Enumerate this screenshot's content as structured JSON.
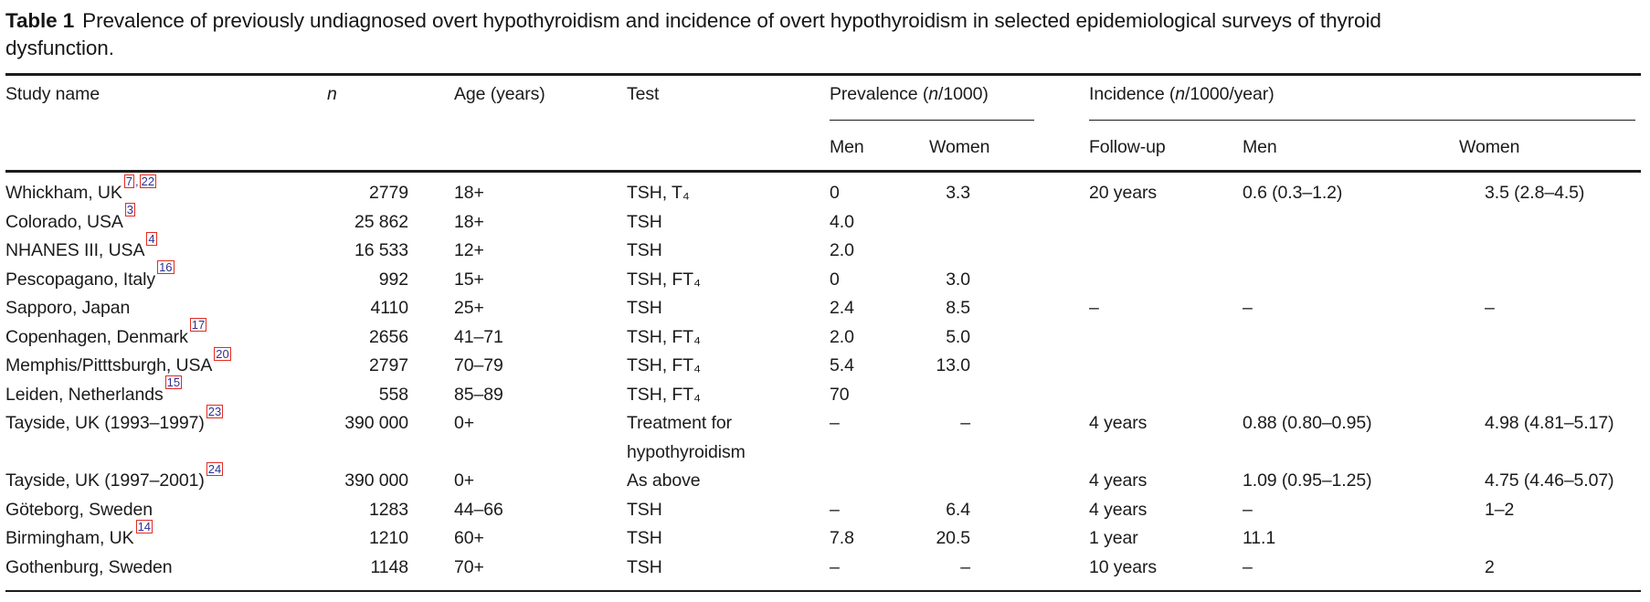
{
  "title": {
    "label": "Table 1",
    "text": "Prevalence of previously undiagnosed overt hypothyroidism and incidence of overt hypothyroidism in selected epidemiological surveys of thyroid dysfunction."
  },
  "header": {
    "study": "Study name",
    "n": "n",
    "age": "Age (years)",
    "test": "Test",
    "prevalence": {
      "pre": "Prevalence (",
      "italic": "n",
      "post": "/1000)"
    },
    "incidence": {
      "pre": "Incidence (",
      "italic": "n",
      "post": "/1000/year)"
    },
    "sub": {
      "prev_men": "Men",
      "prev_women": "Women",
      "follow_up": "Follow-up",
      "inc_men": "Men",
      "inc_women": "Women"
    }
  },
  "colors": {
    "text": "#1b1b1b",
    "rule": "#1b1b1b",
    "citation_text": "#2e3192",
    "citation_box_border": "#e52a20",
    "background": "#ffffff"
  },
  "rows": [
    {
      "study": "Whickham, UK",
      "citations": [
        "7",
        "22"
      ],
      "n": "2779",
      "age": "18+",
      "test": "TSH, T₄",
      "prev_men": "0",
      "prev_women": "3.3",
      "follow_up": "20 years",
      "inc_men": "0.6 (0.3–1.2)",
      "inc_women": "3.5 (2.8–4.5)"
    },
    {
      "study": "Colorado, USA",
      "citations": [
        "3"
      ],
      "n": "25 862",
      "age": "18+",
      "test": "TSH",
      "prev_men": "4.0",
      "prev_women": "",
      "follow_up": "",
      "inc_men": "",
      "inc_women": ""
    },
    {
      "study": "NHANES III, USA",
      "citations": [
        "4"
      ],
      "n": "16 533",
      "age": "12+",
      "test": "TSH",
      "prev_men": "2.0",
      "prev_women": "",
      "follow_up": "",
      "inc_men": "",
      "inc_women": ""
    },
    {
      "study": "Pescopagano, Italy",
      "citations": [
        "16"
      ],
      "n": "992",
      "age": "15+",
      "test": "TSH, FT₄",
      "prev_men": "0",
      "prev_women": "3.0",
      "follow_up": "",
      "inc_men": "",
      "inc_women": ""
    },
    {
      "study": "Sapporo, Japan",
      "citations": [],
      "n": "4110",
      "age": "25+",
      "test": "TSH",
      "prev_men": "2.4",
      "prev_women": "8.5",
      "follow_up": "–",
      "inc_men": "–",
      "inc_women": "–"
    },
    {
      "study": "Copenhagen, Denmark",
      "citations": [
        "17"
      ],
      "n": "2656",
      "age": "41–71",
      "test": "TSH, FT₄",
      "prev_men": "2.0",
      "prev_women": "5.0",
      "follow_up": "",
      "inc_men": "",
      "inc_women": ""
    },
    {
      "study": "Memphis/Pitttsburgh, USA",
      "citations": [
        "20"
      ],
      "n": "2797",
      "age": "70–79",
      "test": "TSH, FT₄",
      "prev_men": "5.4",
      "prev_women": "13.0",
      "follow_up": "",
      "inc_men": "",
      "inc_women": ""
    },
    {
      "study": "Leiden, Netherlands",
      "citations": [
        "15"
      ],
      "n": "558",
      "age": "85–89",
      "test": "TSH, FT₄",
      "prev_men": "70",
      "prev_women": "",
      "follow_up": "",
      "inc_men": "",
      "inc_women": ""
    },
    {
      "study": "Tayside, UK (1993–1997)",
      "citations": [
        "23"
      ],
      "n": "390 000",
      "age": "0+",
      "test": "Treatment for\nhypothyroidism",
      "prev_men": "–",
      "prev_women": "–",
      "follow_up": "4 years",
      "inc_men": "0.88 (0.80–0.95)",
      "inc_women": "4.98 (4.81–5.17)"
    },
    {
      "study": "Tayside, UK (1997–2001)",
      "citations": [
        "24"
      ],
      "n": "390 000",
      "age": "0+",
      "test": "As above",
      "prev_men": "",
      "prev_women": "",
      "follow_up": "4 years",
      "inc_men": "1.09 (0.95–1.25)",
      "inc_women": "4.75 (4.46–5.07)"
    },
    {
      "study": "Göteborg, Sweden",
      "citations": [],
      "n": "1283",
      "age": "44–66",
      "test": "TSH",
      "prev_men": "–",
      "prev_women": "6.4",
      "follow_up": "4 years",
      "inc_men": "–",
      "inc_women": "1–2"
    },
    {
      "study": "Birmingham, UK",
      "citations": [
        "14"
      ],
      "n": "1210",
      "age": "60+",
      "test": "TSH",
      "prev_men": "7.8",
      "prev_women": "20.5",
      "follow_up": "1 year",
      "inc_men": "11.1",
      "inc_women": ""
    },
    {
      "study": "Gothenburg, Sweden",
      "citations": [],
      "n": "1148",
      "age": "70+",
      "test": "TSH",
      "prev_men": "–",
      "prev_women": "–",
      "follow_up": "10 years",
      "inc_men": "–",
      "inc_women": "2"
    }
  ]
}
